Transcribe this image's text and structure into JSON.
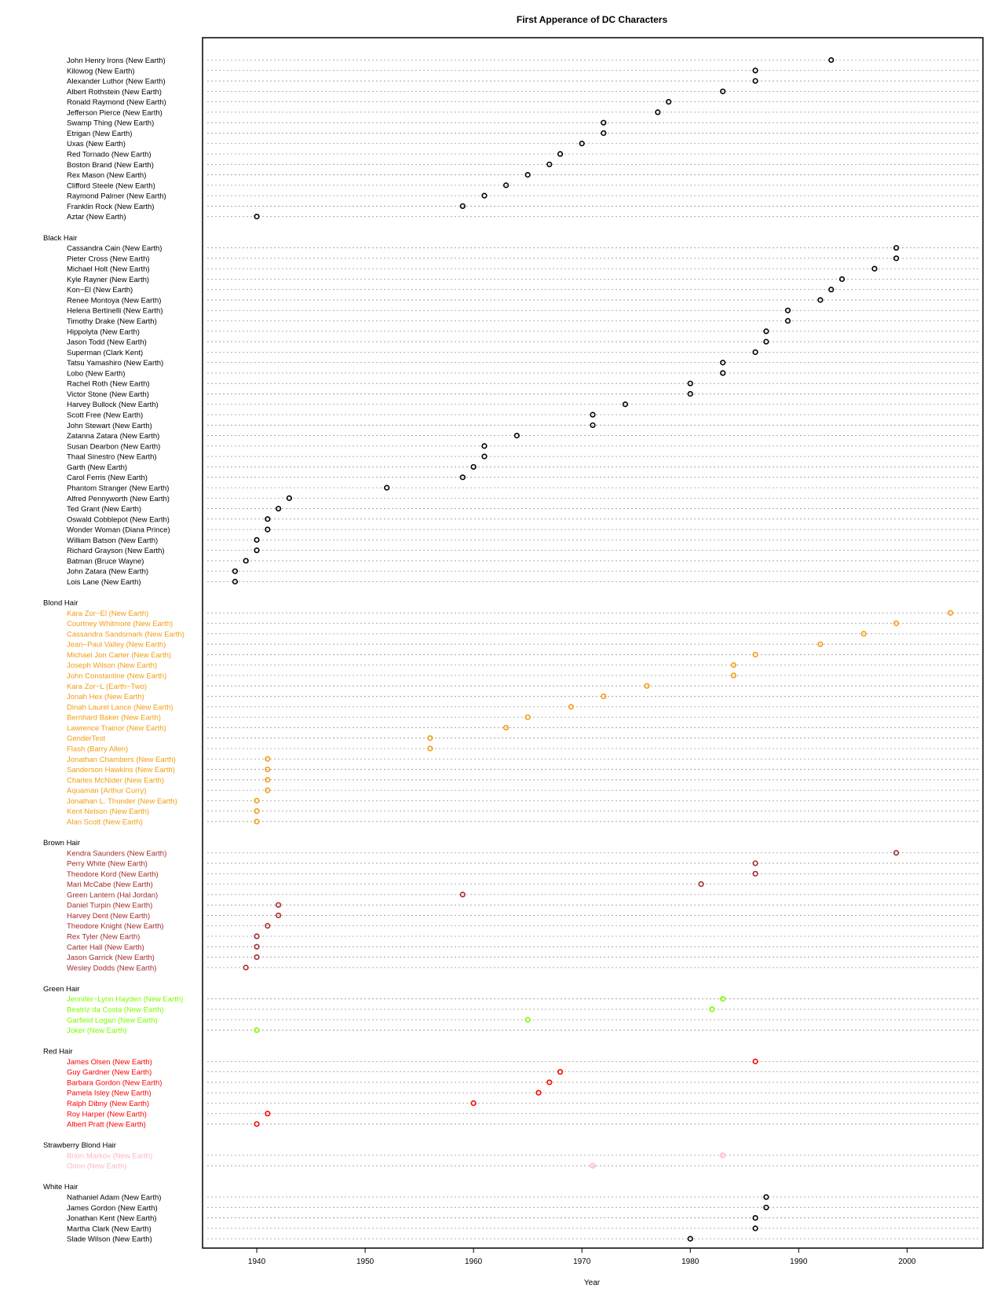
{
  "chart_data": {
    "type": "scatter",
    "subtype": "dotchart",
    "title": "First Apperance of DC Characters",
    "xlabel": "Year",
    "ylabel": "",
    "xlim": [
      1935,
      2007
    ],
    "x_ticks": [
      1940,
      1950,
      1960,
      1970,
      1980,
      1990,
      2000
    ],
    "grid": "dotted horizontal guide line per row",
    "legend": "none",
    "groups": [
      {
        "label": "",
        "color": "#000000",
        "items": [
          {
            "name": "John Henry Irons (New Earth)",
            "year": 1993
          },
          {
            "name": "Kilowog (New Earth)",
            "year": 1986
          },
          {
            "name": "Alexander Luthor (New Earth)",
            "year": 1986
          },
          {
            "name": "Albert Rothstein (New Earth)",
            "year": 1983
          },
          {
            "name": "Ronald Raymond (New Earth)",
            "year": 1978
          },
          {
            "name": "Jefferson Pierce (New Earth)",
            "year": 1977
          },
          {
            "name": "Swamp Thing (New Earth)",
            "year": 1972
          },
          {
            "name": "Etrigan (New Earth)",
            "year": 1972
          },
          {
            "name": "Uxas (New Earth)",
            "year": 1970
          },
          {
            "name": "Red Tornado (New Earth)",
            "year": 1968
          },
          {
            "name": "Boston Brand (New Earth)",
            "year": 1967
          },
          {
            "name": "Rex Mason (New Earth)",
            "year": 1965
          },
          {
            "name": "Clifford Steele (New Earth)",
            "year": 1963
          },
          {
            "name": "Raymond Palmer (New Earth)",
            "year": 1961
          },
          {
            "name": "Franklin Rock (New Earth)",
            "year": 1959
          },
          {
            "name": "Aztar (New Earth)",
            "year": 1940
          }
        ]
      },
      {
        "label": "Black Hair",
        "color": "#000000",
        "items": [
          {
            "name": "Cassandra Cain (New Earth)",
            "year": 1999
          },
          {
            "name": "Pieter Cross (New Earth)",
            "year": 1999
          },
          {
            "name": "Michael Holt (New Earth)",
            "year": 1997
          },
          {
            "name": "Kyle Rayner (New Earth)",
            "year": 1994
          },
          {
            "name": "Kon−El (New Earth)",
            "year": 1993
          },
          {
            "name": "Renee Montoya (New Earth)",
            "year": 1992
          },
          {
            "name": "Helena Bertinelli (New Earth)",
            "year": 1989
          },
          {
            "name": "Timothy Drake (New Earth)",
            "year": 1989
          },
          {
            "name": "Hippolyta (New Earth)",
            "year": 1987
          },
          {
            "name": "Jason Todd (New Earth)",
            "year": 1987
          },
          {
            "name": "Superman (Clark Kent)",
            "year": 1986
          },
          {
            "name": "Tatsu Yamashiro (New Earth)",
            "year": 1983
          },
          {
            "name": "Lobo (New Earth)",
            "year": 1983
          },
          {
            "name": "Rachel Roth (New Earth)",
            "year": 1980
          },
          {
            "name": "Victor Stone (New Earth)",
            "year": 1980
          },
          {
            "name": "Harvey Bullock (New Earth)",
            "year": 1974
          },
          {
            "name": "Scott Free (New Earth)",
            "year": 1971
          },
          {
            "name": "John Stewart (New Earth)",
            "year": 1971
          },
          {
            "name": "Zatanna Zatara (New Earth)",
            "year": 1964
          },
          {
            "name": "Susan Dearbon (New Earth)",
            "year": 1961
          },
          {
            "name": "Thaal Sinestro (New Earth)",
            "year": 1961
          },
          {
            "name": "Garth (New Earth)",
            "year": 1960
          },
          {
            "name": "Carol Ferris (New Earth)",
            "year": 1959
          },
          {
            "name": "Phantom Stranger (New Earth)",
            "year": 1952
          },
          {
            "name": "Alfred Pennyworth (New Earth)",
            "year": 1943
          },
          {
            "name": "Ted Grant (New Earth)",
            "year": 1942
          },
          {
            "name": "Oswald Cobblepot (New Earth)",
            "year": 1941
          },
          {
            "name": "Wonder Woman (Diana Prince)",
            "year": 1941
          },
          {
            "name": "William Batson (New Earth)",
            "year": 1940
          },
          {
            "name": "Richard Grayson (New Earth)",
            "year": 1940
          },
          {
            "name": "Batman (Bruce Wayne)",
            "year": 1939
          },
          {
            "name": "John Zatara (New Earth)",
            "year": 1938
          },
          {
            "name": "Lois Lane (New Earth)",
            "year": 1938
          }
        ]
      },
      {
        "label": "Blond Hair",
        "color": "#f39c12",
        "items": [
          {
            "name": "Kara Zor−El (New Earth)",
            "year": 2004
          },
          {
            "name": "Courtney Whitmore (New Earth)",
            "year": 1999
          },
          {
            "name": "Cassandra Sandsmark (New Earth)",
            "year": 1996
          },
          {
            "name": "Jean−Paul Valley (New Earth)",
            "year": 1992
          },
          {
            "name": "Michael Jon Carter (New Earth)",
            "year": 1986
          },
          {
            "name": "Joseph Wilson (New Earth)",
            "year": 1984
          },
          {
            "name": "John Constantine (New Earth)",
            "year": 1984
          },
          {
            "name": "Kara Zor−L (Earth−Two)",
            "year": 1976
          },
          {
            "name": "Jonah Hex (New Earth)",
            "year": 1972
          },
          {
            "name": "Dinah Laurel Lance (New Earth)",
            "year": 1969
          },
          {
            "name": "Bernhard Baker (New Earth)",
            "year": 1965
          },
          {
            "name": "Lawrence Trainor (New Earth)",
            "year": 1963
          },
          {
            "name": "GenderTest",
            "year": 1956
          },
          {
            "name": "Flash (Barry Allen)",
            "year": 1956
          },
          {
            "name": "Jonathan Chambers (New Earth)",
            "year": 1941
          },
          {
            "name": "Sanderson Hawkins (New Earth)",
            "year": 1941
          },
          {
            "name": "Charles McNider (New Earth)",
            "year": 1941
          },
          {
            "name": "Aquaman (Arthur Curry)",
            "year": 1941
          },
          {
            "name": "Jonathan L. Thunder (New Earth)",
            "year": 1940
          },
          {
            "name": "Kent Nelson (New Earth)",
            "year": 1940
          },
          {
            "name": "Alan Scott (New Earth)",
            "year": 1940
          }
        ]
      },
      {
        "label": "Brown Hair",
        "color": "#a52a2a",
        "items": [
          {
            "name": "Kendra Saunders (New Earth)",
            "year": 1999
          },
          {
            "name": "Perry White (New Earth)",
            "year": 1986
          },
          {
            "name": "Theodore Kord (New Earth)",
            "year": 1986
          },
          {
            "name": "Mari McCabe (New Earth)",
            "year": 1981
          },
          {
            "name": "Green Lantern (Hal Jordan)",
            "year": 1959
          },
          {
            "name": "Daniel Turpin (New Earth)",
            "year": 1942
          },
          {
            "name": "Harvey Dent (New Earth)",
            "year": 1942
          },
          {
            "name": "Theodore Knight (New Earth)",
            "year": 1941
          },
          {
            "name": "Rex Tyler (New Earth)",
            "year": 1940
          },
          {
            "name": "Carter Hall (New Earth)",
            "year": 1940
          },
          {
            "name": "Jason Garrick (New Earth)",
            "year": 1940
          },
          {
            "name": "Wesley Dodds (New Earth)",
            "year": 1939
          }
        ]
      },
      {
        "label": "Green Hair",
        "color": "#7cfc00",
        "items": [
          {
            "name": "Jennifer−Lynn Hayden (New Earth)",
            "year": 1983
          },
          {
            "name": "Beatriz da Costa (New Earth)",
            "year": 1982
          },
          {
            "name": "Garfield Logan (New Earth)",
            "year": 1965
          },
          {
            "name": "Joker (New Earth)",
            "year": 1940
          }
        ]
      },
      {
        "label": "Red Hair",
        "color": "#ff0000",
        "items": [
          {
            "name": "James Olsen (New Earth)",
            "year": 1986
          },
          {
            "name": "Guy Gardner (New Earth)",
            "year": 1968
          },
          {
            "name": "Barbara Gordon (New Earth)",
            "year": 1967
          },
          {
            "name": "Pamela Isley (New Earth)",
            "year": 1966
          },
          {
            "name": "Ralph Dibny (New Earth)",
            "year": 1960
          },
          {
            "name": "Roy Harper (New Earth)",
            "year": 1941
          },
          {
            "name": "Albert Pratt (New Earth)",
            "year": 1940
          }
        ]
      },
      {
        "label": "Strawberry Blond Hair",
        "color": "#ffb6c1",
        "items": [
          {
            "name": "Brion Markov (New Earth)",
            "year": 1983
          },
          {
            "name": "Orion (New Earth)",
            "year": 1971
          }
        ]
      },
      {
        "label": "White Hair",
        "color": "#000000",
        "items": [
          {
            "name": "Nathaniel Adam (New Earth)",
            "year": 1987
          },
          {
            "name": "James Gordon (New Earth)",
            "year": 1987
          },
          {
            "name": "Jonathan Kent (New Earth)",
            "year": 1986
          },
          {
            "name": "Martha Clark (New Earth)",
            "year": 1986
          },
          {
            "name": "Slade Wilson (New Earth)",
            "year": 1980
          }
        ]
      }
    ]
  }
}
